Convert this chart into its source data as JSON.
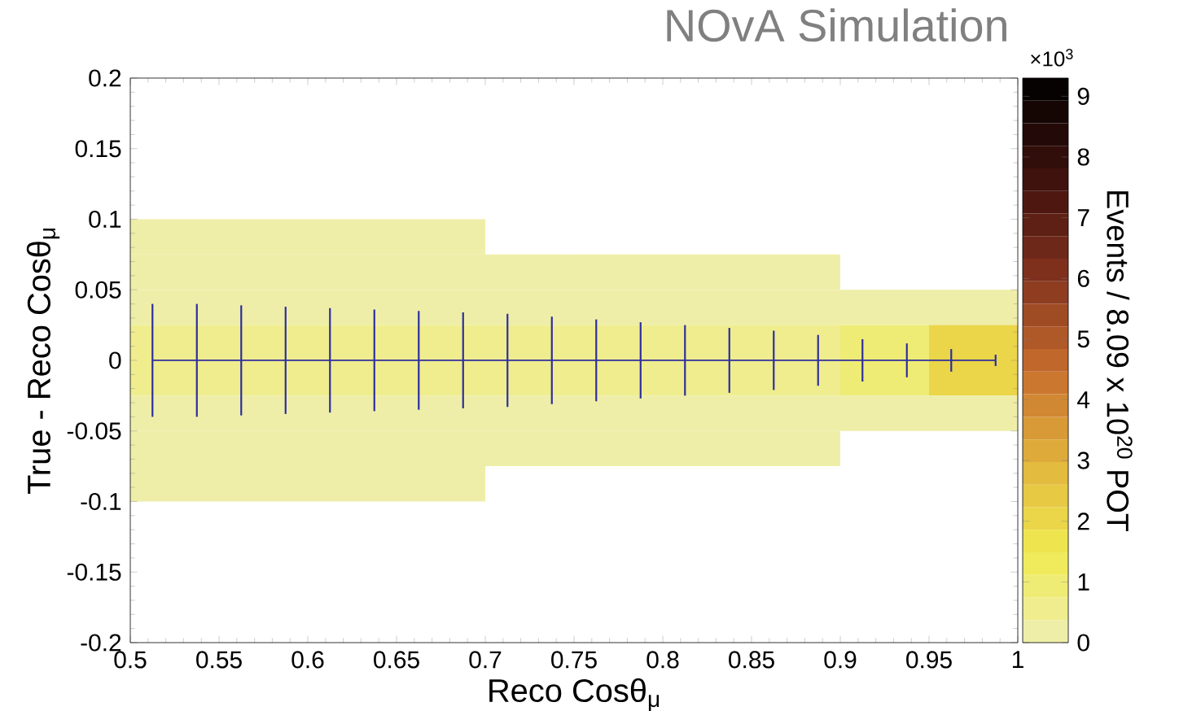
{
  "chart_data": {
    "type": "heatmap",
    "title": "NOvA Simulation",
    "xlabel": "Reco Cosθ$_{μ}$",
    "ylabel": "True - Reco Cosθ$_{μ}$",
    "clabel": "Events / 8.09 x 10$^{20}$ POT",
    "annotations": [
      "×10$^{3}$"
    ],
    "x": [
      0.525,
      0.575,
      0.625,
      0.675,
      0.725,
      0.775,
      0.825,
      0.875,
      0.925,
      0.975
    ],
    "y": [
      0.0875,
      0.0625,
      0.0375,
      0.0125,
      -0.0125,
      -0.0375,
      -0.0625,
      -0.0875
    ],
    "cells": [
      [
        0.19,
        0.19,
        0.19,
        0.19,
        null,
        null,
        null,
        null,
        null,
        null
      ],
      [
        0.19,
        0.19,
        0.19,
        0.19,
        0.19,
        0.19,
        0.19,
        0.19,
        null,
        null
      ],
      [
        0.19,
        0.19,
        0.19,
        0.19,
        0.19,
        0.19,
        0.19,
        0.19,
        0.19,
        0.19
      ],
      [
        0.56,
        0.56,
        0.56,
        0.56,
        0.56,
        0.56,
        0.56,
        0.56,
        0.93,
        2.05
      ],
      [
        0.56,
        0.56,
        0.56,
        0.56,
        0.56,
        0.56,
        0.56,
        0.56,
        0.93,
        2.05
      ],
      [
        0.19,
        0.19,
        0.19,
        0.19,
        0.19,
        0.19,
        0.19,
        0.19,
        0.19,
        0.19
      ],
      [
        0.19,
        0.19,
        0.19,
        0.19,
        0.19,
        0.19,
        0.19,
        0.19,
        null,
        null
      ],
      [
        0.19,
        0.19,
        0.19,
        0.19,
        null,
        null,
        null,
        null,
        null,
        null
      ]
    ],
    "series": [
      {
        "type": "line",
        "color": "#2e2e9e",
        "x": [
          0.5125,
          0.5375,
          0.5625,
          0.5875,
          0.6125,
          0.6375,
          0.6625,
          0.6875,
          0.7125,
          0.7375,
          0.7625,
          0.7875,
          0.8125,
          0.8375,
          0.8625,
          0.8875,
          0.9125,
          0.9375,
          0.9625,
          0.9875
        ],
        "values": [
          0,
          0,
          0,
          0,
          0,
          0,
          0,
          0,
          0,
          0,
          0,
          0,
          0,
          0,
          0,
          0,
          0,
          0,
          0,
          0
        ],
        "errors": [
          0.04,
          0.04,
          0.039,
          0.038,
          0.037,
          0.036,
          0.035,
          0.034,
          0.033,
          0.031,
          0.029,
          0.027,
          0.025,
          0.023,
          0.021,
          0.018,
          0.015,
          0.012,
          0.008,
          0.004
        ]
      }
    ],
    "xlim": [
      0.5,
      1
    ],
    "xticks": [
      0.5,
      0.55,
      0.6,
      0.65,
      0.7,
      0.75,
      0.8,
      0.85,
      0.9,
      0.95,
      1
    ],
    "ylim": [
      -0.2,
      0.2
    ],
    "yticks": [
      -0.2,
      -0.15,
      -0.1,
      -0.05,
      0,
      0.05,
      0.1,
      0.15,
      0.2
    ],
    "clim": [
      0,
      9.3
    ],
    "cticks": [
      0,
      1,
      2,
      3,
      4,
      5,
      6,
      7,
      8,
      9
    ]
  }
}
